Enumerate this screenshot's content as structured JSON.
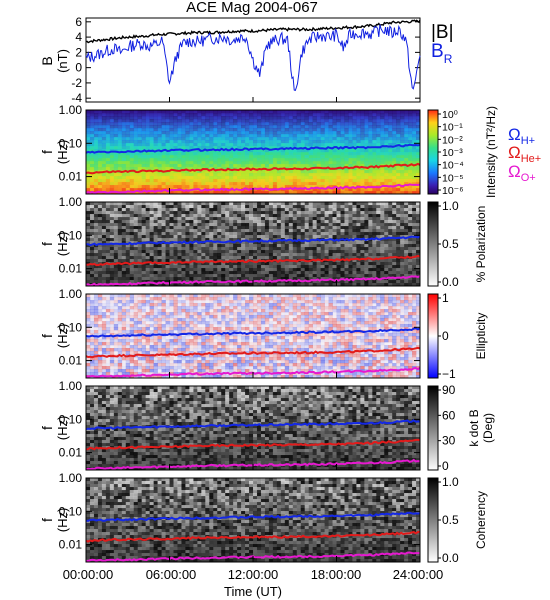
{
  "chart_data": [
    {
      "type": "line",
      "title": "ACE Mag 2004-067",
      "ylabel_line1": "B",
      "ylabel_line2": "(nT)",
      "yticks": [
        6,
        4,
        2,
        0,
        -2,
        -4
      ],
      "ylim": [
        -4.5,
        6.5
      ],
      "xlim": [
        0,
        24
      ],
      "series": [
        {
          "name": "|B|",
          "color": "#000000",
          "x": [
            0,
            1,
            2,
            3,
            4,
            5,
            6,
            7,
            8,
            9,
            10,
            11,
            12,
            13,
            14,
            15,
            16,
            17,
            18,
            19,
            20,
            21,
            22,
            23,
            24
          ],
          "values": [
            3.4,
            3.6,
            3.8,
            4.0,
            4.1,
            4.3,
            4.4,
            4.5,
            4.6,
            4.6,
            4.7,
            4.8,
            4.8,
            4.9,
            5.0,
            5.0,
            5.0,
            5.1,
            5.2,
            5.3,
            5.4,
            5.6,
            5.9,
            6.0,
            6.1
          ]
        },
        {
          "name": "B",
          "name_sub": "R",
          "color": "#1020e0",
          "x": [
            0,
            0.5,
            1,
            1.5,
            2,
            2.5,
            3,
            3.5,
            4,
            4.5,
            5,
            5.5,
            6,
            6.5,
            7,
            7.5,
            8,
            8.5,
            9,
            9.5,
            10,
            10.5,
            11,
            11.5,
            12,
            12.5,
            13,
            13.5,
            14,
            14.5,
            15,
            15.5,
            16,
            16.5,
            17,
            17.5,
            18,
            18.5,
            19,
            19.5,
            20,
            20.5,
            21,
            21.5,
            22,
            22.5,
            23,
            23.5,
            24
          ],
          "values": [
            1.2,
            1.5,
            1.8,
            2.2,
            2.5,
            2.0,
            2.7,
            3.0,
            3.2,
            2.8,
            3.0,
            3.5,
            -2.0,
            1.5,
            3.2,
            3.5,
            3.4,
            3.6,
            3.8,
            3.9,
            4.0,
            3.5,
            3.9,
            4.1,
            1.0,
            -1.0,
            3.0,
            3.5,
            3.8,
            3.6,
            -3.8,
            2.0,
            3.6,
            4.0,
            4.2,
            4.0,
            4.3,
            2.5,
            4.4,
            4.5,
            4.6,
            4.4,
            4.8,
            5.0,
            4.5,
            5.0,
            3.5,
            -3.5,
            2.0
          ]
        }
      ]
    },
    {
      "type": "heatmap",
      "quantity": "Intensity",
      "ylabel_line1": "f",
      "ylabel_line2": "(Hz)",
      "yticks": [
        "1.00",
        "0.10",
        "0.01"
      ],
      "colorbar_label": "Intensity (nT²/Hz)",
      "colorbar_ticks": [
        "10⁰",
        "10⁻¹",
        "10⁻²",
        "10⁻³",
        "10⁻⁴",
        "10⁻⁵",
        "10⁻⁶"
      ],
      "colorscale": "rainbow",
      "curves_legend": [
        {
          "symbol": "Ω",
          "sub": "H+",
          "color": "#1428e6"
        },
        {
          "symbol": "Ω",
          "sub": "He+",
          "color": "#e21b1b"
        },
        {
          "symbol": "Ω",
          "sub": "O+",
          "color": "#e619d0"
        }
      ]
    },
    {
      "type": "heatmap",
      "quantity": "% Polarization",
      "ylabel_line1": "f",
      "ylabel_line2": "(Hz)",
      "yticks": [
        "1.00",
        "0.10",
        "0.01"
      ],
      "colorbar_label": "% Polarization",
      "colorbar_ticks": [
        "1.0",
        "0.5",
        "0.0"
      ],
      "colorscale": "gray"
    },
    {
      "type": "heatmap",
      "quantity": "Ellipticity",
      "ylabel_line1": "f",
      "ylabel_line2": "(Hz)",
      "yticks": [
        "1.00",
        "0.10",
        "0.01"
      ],
      "colorbar_label": "Ellipticity",
      "colorbar_ticks": [
        "1",
        "0",
        "−1"
      ],
      "colorscale": "blue-white-red"
    },
    {
      "type": "heatmap",
      "quantity": "k dot B",
      "ylabel_line1": "f",
      "ylabel_line2": "(Hz)",
      "yticks": [
        "1.00",
        "0.10",
        "0.01"
      ],
      "colorbar_label_line1": "k dot B",
      "colorbar_label_line2": "(Deg)",
      "colorbar_ticks": [
        "90",
        "60",
        "30",
        "0"
      ],
      "colorscale": "gray"
    },
    {
      "type": "heatmap",
      "quantity": "Coherency",
      "ylabel_line1": "f",
      "ylabel_line2": "(Hz)",
      "yticks": [
        "1.00",
        "0.10",
        "0.01"
      ],
      "colorbar_label": "Coherency",
      "colorbar_ticks": [
        "1.0",
        "0.5",
        "0.0"
      ],
      "colorscale": "gray"
    }
  ],
  "gyrofrequency_curves": {
    "x": [
      0,
      2,
      4,
      6,
      8,
      10,
      12,
      14,
      16,
      18,
      20,
      22,
      24
    ],
    "H+": [
      0.053,
      0.055,
      0.058,
      0.061,
      0.063,
      0.065,
      0.067,
      0.069,
      0.071,
      0.073,
      0.075,
      0.082,
      0.09
    ],
    "He+": [
      0.013,
      0.014,
      0.0145,
      0.015,
      0.016,
      0.0163,
      0.0168,
      0.017,
      0.0175,
      0.018,
      0.019,
      0.021,
      0.023
    ],
    "O+": [
      0.0033,
      0.0034,
      0.0036,
      0.0038,
      0.004,
      0.0041,
      0.0042,
      0.0043,
      0.0044,
      0.0046,
      0.0048,
      0.0052,
      0.0058
    ]
  },
  "xaxis": {
    "ticks": [
      "00:00:00",
      "06:00:00",
      "12:00:00",
      "18:00:00",
      "24:00:00"
    ],
    "label": "Time (UT)"
  }
}
